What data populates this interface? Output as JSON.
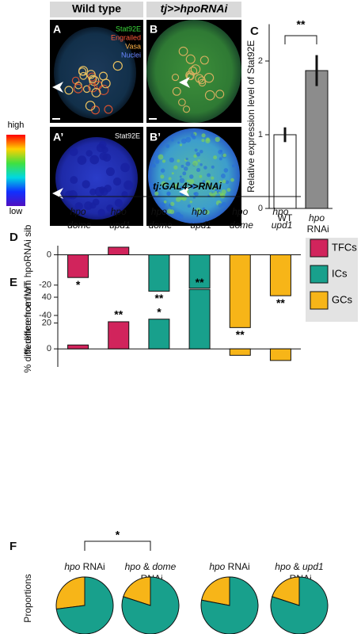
{
  "figure": {
    "header_left": "Wild type",
    "header_right": "tj>>hpoRNAi",
    "panel_labels": [
      "A",
      "B",
      "A’",
      "B’"
    ],
    "channels": [
      {
        "name": "Stat92E",
        "color": "#3ddc3d"
      },
      {
        "name": "Engrailed",
        "color": "#ff5a3a"
      },
      {
        "name": "Vasa",
        "color": "#ffb347"
      },
      {
        "name": "Nuclei",
        "color": "#6a86ff"
      }
    ],
    "heatmap_channel": "Stat92E",
    "scale_high": "high",
    "scale_low": "low"
  },
  "chart_data": [
    {
      "type": "bar",
      "panel": "C",
      "ylabel": "Relative expression level of Stat92E",
      "categories": [
        "WT",
        "hpo RNAi"
      ],
      "values": [
        1.0,
        1.87
      ],
      "errors": [
        0.1,
        0.21
      ],
      "colors": [
        "#ffffff",
        "#8c8c8c"
      ],
      "ylim": [
        0,
        2.5
      ],
      "yticks": [
        0,
        1,
        2
      ],
      "significance": "**"
    },
    {
      "type": "bar",
      "panel": "D",
      "header": "tj:GAL4>>RNAi",
      "ylabel": "% difference from hpoRNAi sib",
      "categories": [
        "hpo dome",
        "hpo upd1",
        "hpo dome",
        "hpo upd1",
        "hpo dome",
        "hpo upd1"
      ],
      "series": [
        {
          "name": "TFCs",
          "color": "#d1245c",
          "values": [
            -15,
            5,
            null,
            null,
            null,
            null
          ]
        },
        {
          "name": "ICs",
          "color": "#18a08c",
          "values": [
            null,
            null,
            -24,
            -22,
            null,
            null
          ]
        },
        {
          "name": "GCs",
          "color": "#f7b518",
          "values": [
            null,
            null,
            null,
            null,
            -48,
            -27
          ]
        }
      ],
      "significance": [
        "*",
        null,
        "**",
        "**",
        "**",
        "**"
      ],
      "ylim": [
        -52,
        6
      ],
      "yticks": [
        0,
        -20,
        -40
      ],
      "legend": "right"
    },
    {
      "type": "bar",
      "panel": "E",
      "ylabel": "% difference from WT",
      "series": [
        {
          "name": "TFCs",
          "color": "#d1245c",
          "values": [
            3,
            21,
            null,
            null,
            null,
            null
          ]
        },
        {
          "name": "ICs",
          "color": "#18a08c",
          "values": [
            null,
            null,
            23,
            46,
            null,
            null
          ]
        },
        {
          "name": "GCs",
          "color": "#f7b518",
          "values": [
            null,
            null,
            null,
            null,
            -5,
            -9
          ]
        }
      ],
      "significance": [
        null,
        "**",
        "*",
        "**",
        null,
        null
      ],
      "ylim": [
        -14,
        48
      ],
      "yticks": [
        0,
        20,
        40
      ]
    },
    {
      "type": "pie",
      "panel": "F",
      "ylabel": "Proportions",
      "significance": "*",
      "colors": [
        "#f7b518",
        "#18a08c"
      ],
      "pies": [
        {
          "label": "hpo RNAi",
          "values": [
            27,
            73
          ]
        },
        {
          "label": "hpo & dome RNAi",
          "values": [
            20,
            80
          ]
        },
        {
          "label": "hpo RNAi",
          "values": [
            22,
            78
          ]
        },
        {
          "label": "hpo & upd1 RNAi",
          "values": [
            20,
            80
          ]
        }
      ]
    }
  ]
}
